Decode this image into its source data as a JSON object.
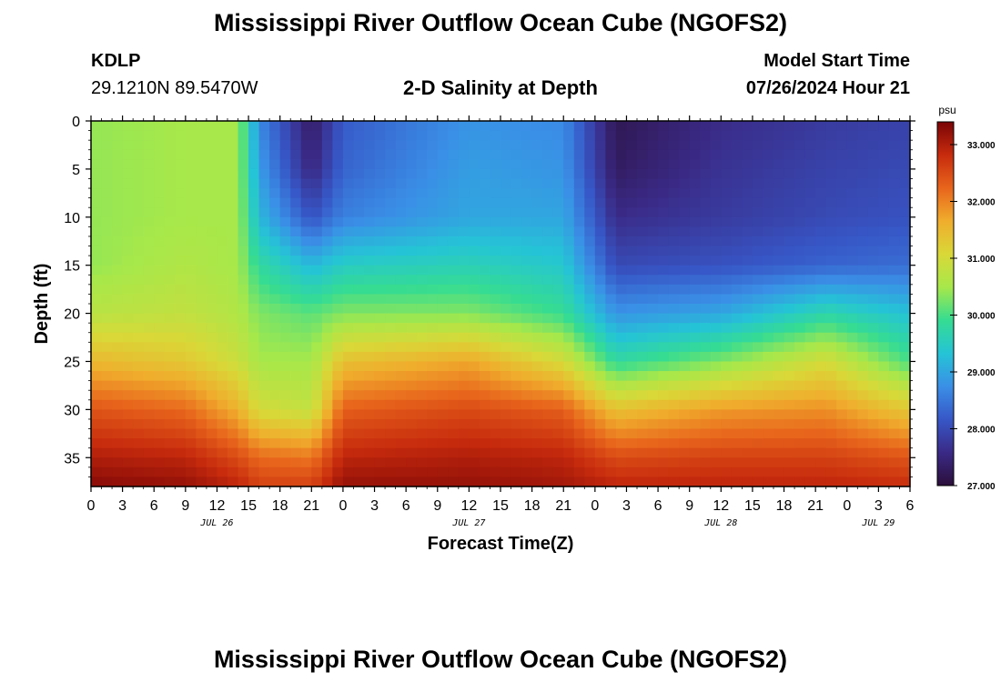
{
  "header": {
    "title": "Mississippi River Outflow Ocean Cube (NGOFS2)",
    "station_id": "KDLP",
    "station_coords": "29.1210N  89.5470W",
    "plot_title": "2-D Salinity at Depth",
    "start_label": "Model Start Time",
    "start_value": "07/26/2024 Hour 21"
  },
  "footer": {
    "title": "Mississippi River Outflow Ocean Cube (NGOFS2)"
  },
  "chart_data": {
    "type": "heatmap",
    "title": "2-D Salinity at Depth",
    "xlabel": "Forecast Time(Z)",
    "ylabel": "Depth (ft)",
    "x_start": "2024-07-26T00Z",
    "x_range_hours": [
      0,
      78
    ],
    "y_range_ft": [
      0,
      38
    ],
    "y_ticks": [
      "0",
      "5",
      "10",
      "15",
      "20",
      "25",
      "30",
      "35"
    ],
    "x_ticks": [
      "0",
      "3",
      "6",
      "9",
      "12",
      "15",
      "18",
      "21",
      "0",
      "3",
      "6",
      "9",
      "12",
      "15",
      "18",
      "21",
      "0",
      "3",
      "6",
      "9",
      "12",
      "15",
      "18",
      "21",
      "0",
      "3",
      "6"
    ],
    "date_labels": [
      "JUL 26",
      "JUL 27",
      "JUL 28",
      "JUL 29"
    ],
    "colorbar": {
      "unit": "psu",
      "range": [
        27.0,
        33.4
      ],
      "tick_labels": [
        "27.000",
        "28.000",
        "29.000",
        "30.000",
        "31.000",
        "32.000",
        "33.000"
      ],
      "colors": [
        "#2b0f3a",
        "#3a2a86",
        "#3757c7",
        "#3a8fe6",
        "#25c4d6",
        "#35dc92",
        "#a7e84a",
        "#d9d838",
        "#f0ad2d",
        "#e8651c",
        "#c72b0d",
        "#7a0406"
      ]
    },
    "profile_depths_ft": [
      0,
      5,
      10,
      15,
      20,
      25,
      30,
      35,
      38
    ],
    "profiles": [
      {
        "hour": 0,
        "values": [
          30.4,
          30.4,
          30.4,
          30.4,
          30.7,
          31.5,
          32.4,
          33.0,
          33.3
        ]
      },
      {
        "hour": 9,
        "values": [
          30.5,
          30.5,
          30.5,
          30.6,
          30.8,
          31.3,
          32.2,
          32.9,
          33.2
        ]
      },
      {
        "hour": 14,
        "values": [
          30.5,
          30.5,
          30.5,
          30.5,
          30.6,
          30.9,
          31.6,
          32.5,
          32.9
        ]
      },
      {
        "hour": 16,
        "values": [
          28.7,
          28.9,
          29.2,
          29.8,
          30.3,
          30.5,
          31.0,
          32.2,
          32.6
        ]
      },
      {
        "hour": 21,
        "values": [
          27.3,
          27.5,
          28.1,
          29.2,
          30.1,
          30.5,
          30.8,
          32.1,
          32.6
        ]
      },
      {
        "hour": 24,
        "values": [
          28.2,
          28.3,
          28.6,
          29.5,
          30.3,
          31.4,
          32.3,
          32.9,
          33.2
        ]
      },
      {
        "hour": 36,
        "values": [
          28.8,
          28.9,
          29.0,
          29.6,
          30.3,
          31.7,
          32.5,
          33.0,
          33.2
        ]
      },
      {
        "hour": 45,
        "values": [
          28.7,
          28.8,
          29.0,
          29.4,
          29.9,
          31.0,
          32.3,
          32.9,
          33.1
        ]
      },
      {
        "hour": 50,
        "values": [
          27.2,
          27.3,
          27.6,
          28.0,
          28.8,
          29.8,
          31.4,
          32.5,
          32.9
        ]
      },
      {
        "hour": 60,
        "values": [
          27.6,
          27.7,
          27.8,
          28.1,
          29.0,
          30.3,
          31.8,
          32.6,
          32.9
        ]
      },
      {
        "hour": 70,
        "values": [
          27.8,
          27.9,
          28.0,
          28.3,
          29.7,
          31.0,
          31.9,
          32.6,
          32.9
        ]
      },
      {
        "hour": 78,
        "values": [
          27.9,
          28.0,
          28.1,
          28.4,
          29.3,
          30.0,
          31.3,
          32.4,
          32.8
        ]
      }
    ]
  }
}
